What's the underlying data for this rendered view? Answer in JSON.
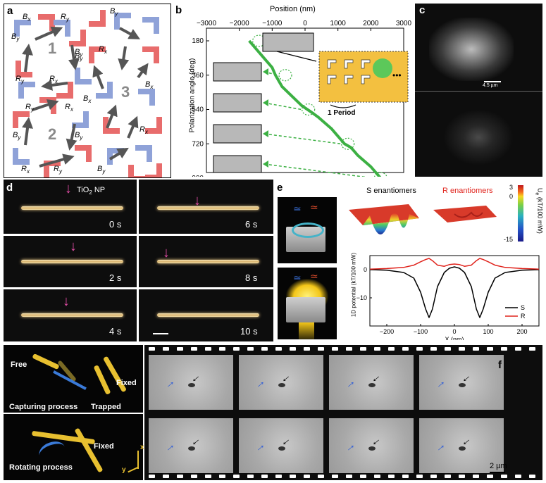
{
  "panels": {
    "a": {
      "label": "a",
      "numbers": [
        "1",
        "2",
        "3"
      ],
      "field_symbols": [
        "Bx",
        "Ry",
        "By",
        "Rx"
      ]
    },
    "b": {
      "label": "b",
      "xlabel": "Position (nm)",
      "ylabel": "Polarization angle (deg)",
      "period_label": "1 Period",
      "dots": "•••"
    },
    "c": {
      "label": "c",
      "scalebar": "4.5 µm"
    },
    "d": {
      "label": "d",
      "np_label": "TiO",
      "np_sub": "2",
      "np_suffix": " NP",
      "times": [
        "0 s",
        "6 s",
        "2 s",
        "8 s",
        "4 s",
        "10 s"
      ]
    },
    "e": {
      "label": "e",
      "s_title": "S enantiomers",
      "r_title": "R enantiomers",
      "cbar_label": "U",
      "cbar_sub": "e",
      "cbar_unit": "(kT/100 mW)",
      "cbar_ticks": [
        "3",
        "0",
        "-15"
      ],
      "ylabel": "1D potential (kT/100 mW)",
      "xlabel": "X (nm)"
    },
    "f": {
      "label": "f",
      "free": "Free",
      "fixed1": "Fixed",
      "trapped": "Trapped",
      "capturing": "Capturing process",
      "fixed2": "Fixed",
      "rotating": "Rotating process",
      "axis_x": "x",
      "axis_y": "y",
      "scalebar": "2 µm"
    }
  },
  "chart_data": [
    {
      "type": "line",
      "panel": "b",
      "xlabel": "Position (nm)",
      "ylabel": "Polarization angle (deg)",
      "xlim": [
        -3000,
        3000
      ],
      "ylim": [
        900,
        180
      ],
      "xticks": [
        -3000,
        -2000,
        -1000,
        0,
        1000,
        2000,
        3000
      ],
      "yticks": [
        180,
        360,
        540,
        720,
        900
      ],
      "x_axis_position": "top",
      "series": [
        {
          "x": [
            -1700,
            -1300,
            -1000,
            -900,
            -700,
            -400,
            -100,
            200,
            400,
            600,
            800,
            1000,
            1200,
            1400,
            1500,
            1600,
            1800,
            2000,
            2200,
            2300
          ],
          "y": [
            180,
            260,
            320,
            360,
            420,
            470,
            520,
            555,
            580,
            610,
            640,
            680,
            720,
            740,
            760,
            780,
            810,
            840,
            880,
            900
          ],
          "color": "#3cb043"
        }
      ],
      "markers": [
        {
          "x": -1400,
          "y": 180
        },
        {
          "x": -600,
          "y": 360
        },
        {
          "x": 100,
          "y": 540
        },
        {
          "x": 1300,
          "y": 720
        },
        {
          "x": 2300,
          "y": 900
        }
      ]
    },
    {
      "type": "line",
      "panel": "e",
      "xlabel": "X (nm)",
      "ylabel": "1D potential (kT/100 mW)",
      "xlim": [
        -250,
        250
      ],
      "ylim": [
        -20,
        5
      ],
      "xticks": [
        -200,
        -100,
        0,
        100,
        200
      ],
      "yticks": [
        0,
        -10
      ],
      "legend": "right",
      "series": [
        {
          "name": "S",
          "color": "#000000",
          "x": [
            -250,
            -200,
            -150,
            -120,
            -100,
            -85,
            -75,
            -65,
            -50,
            -30,
            -15,
            0,
            15,
            30,
            50,
            65,
            75,
            85,
            100,
            120,
            150,
            200,
            250
          ],
          "y": [
            0,
            -0.2,
            -1,
            -3,
            -8,
            -14,
            -17,
            -14,
            -6,
            -1,
            0.5,
            1,
            0.5,
            -1,
            -6,
            -14,
            -17,
            -14,
            -8,
            -3,
            -1,
            -0.2,
            0
          ]
        },
        {
          "name": "R",
          "color": "#e0231c",
          "x": [
            -250,
            -200,
            -150,
            -120,
            -100,
            -85,
            -75,
            -65,
            -50,
            -30,
            -15,
            0,
            15,
            30,
            50,
            65,
            75,
            85,
            100,
            120,
            150,
            200,
            250
          ],
          "y": [
            0.2,
            0.4,
            0.8,
            1.6,
            2.8,
            3.6,
            4,
            3.2,
            1.6,
            1.2,
            1.8,
            2,
            1.8,
            1.2,
            1.6,
            3.2,
            4,
            3.6,
            2.8,
            1.6,
            0.8,
            0.4,
            0.2
          ]
        }
      ]
    }
  ]
}
